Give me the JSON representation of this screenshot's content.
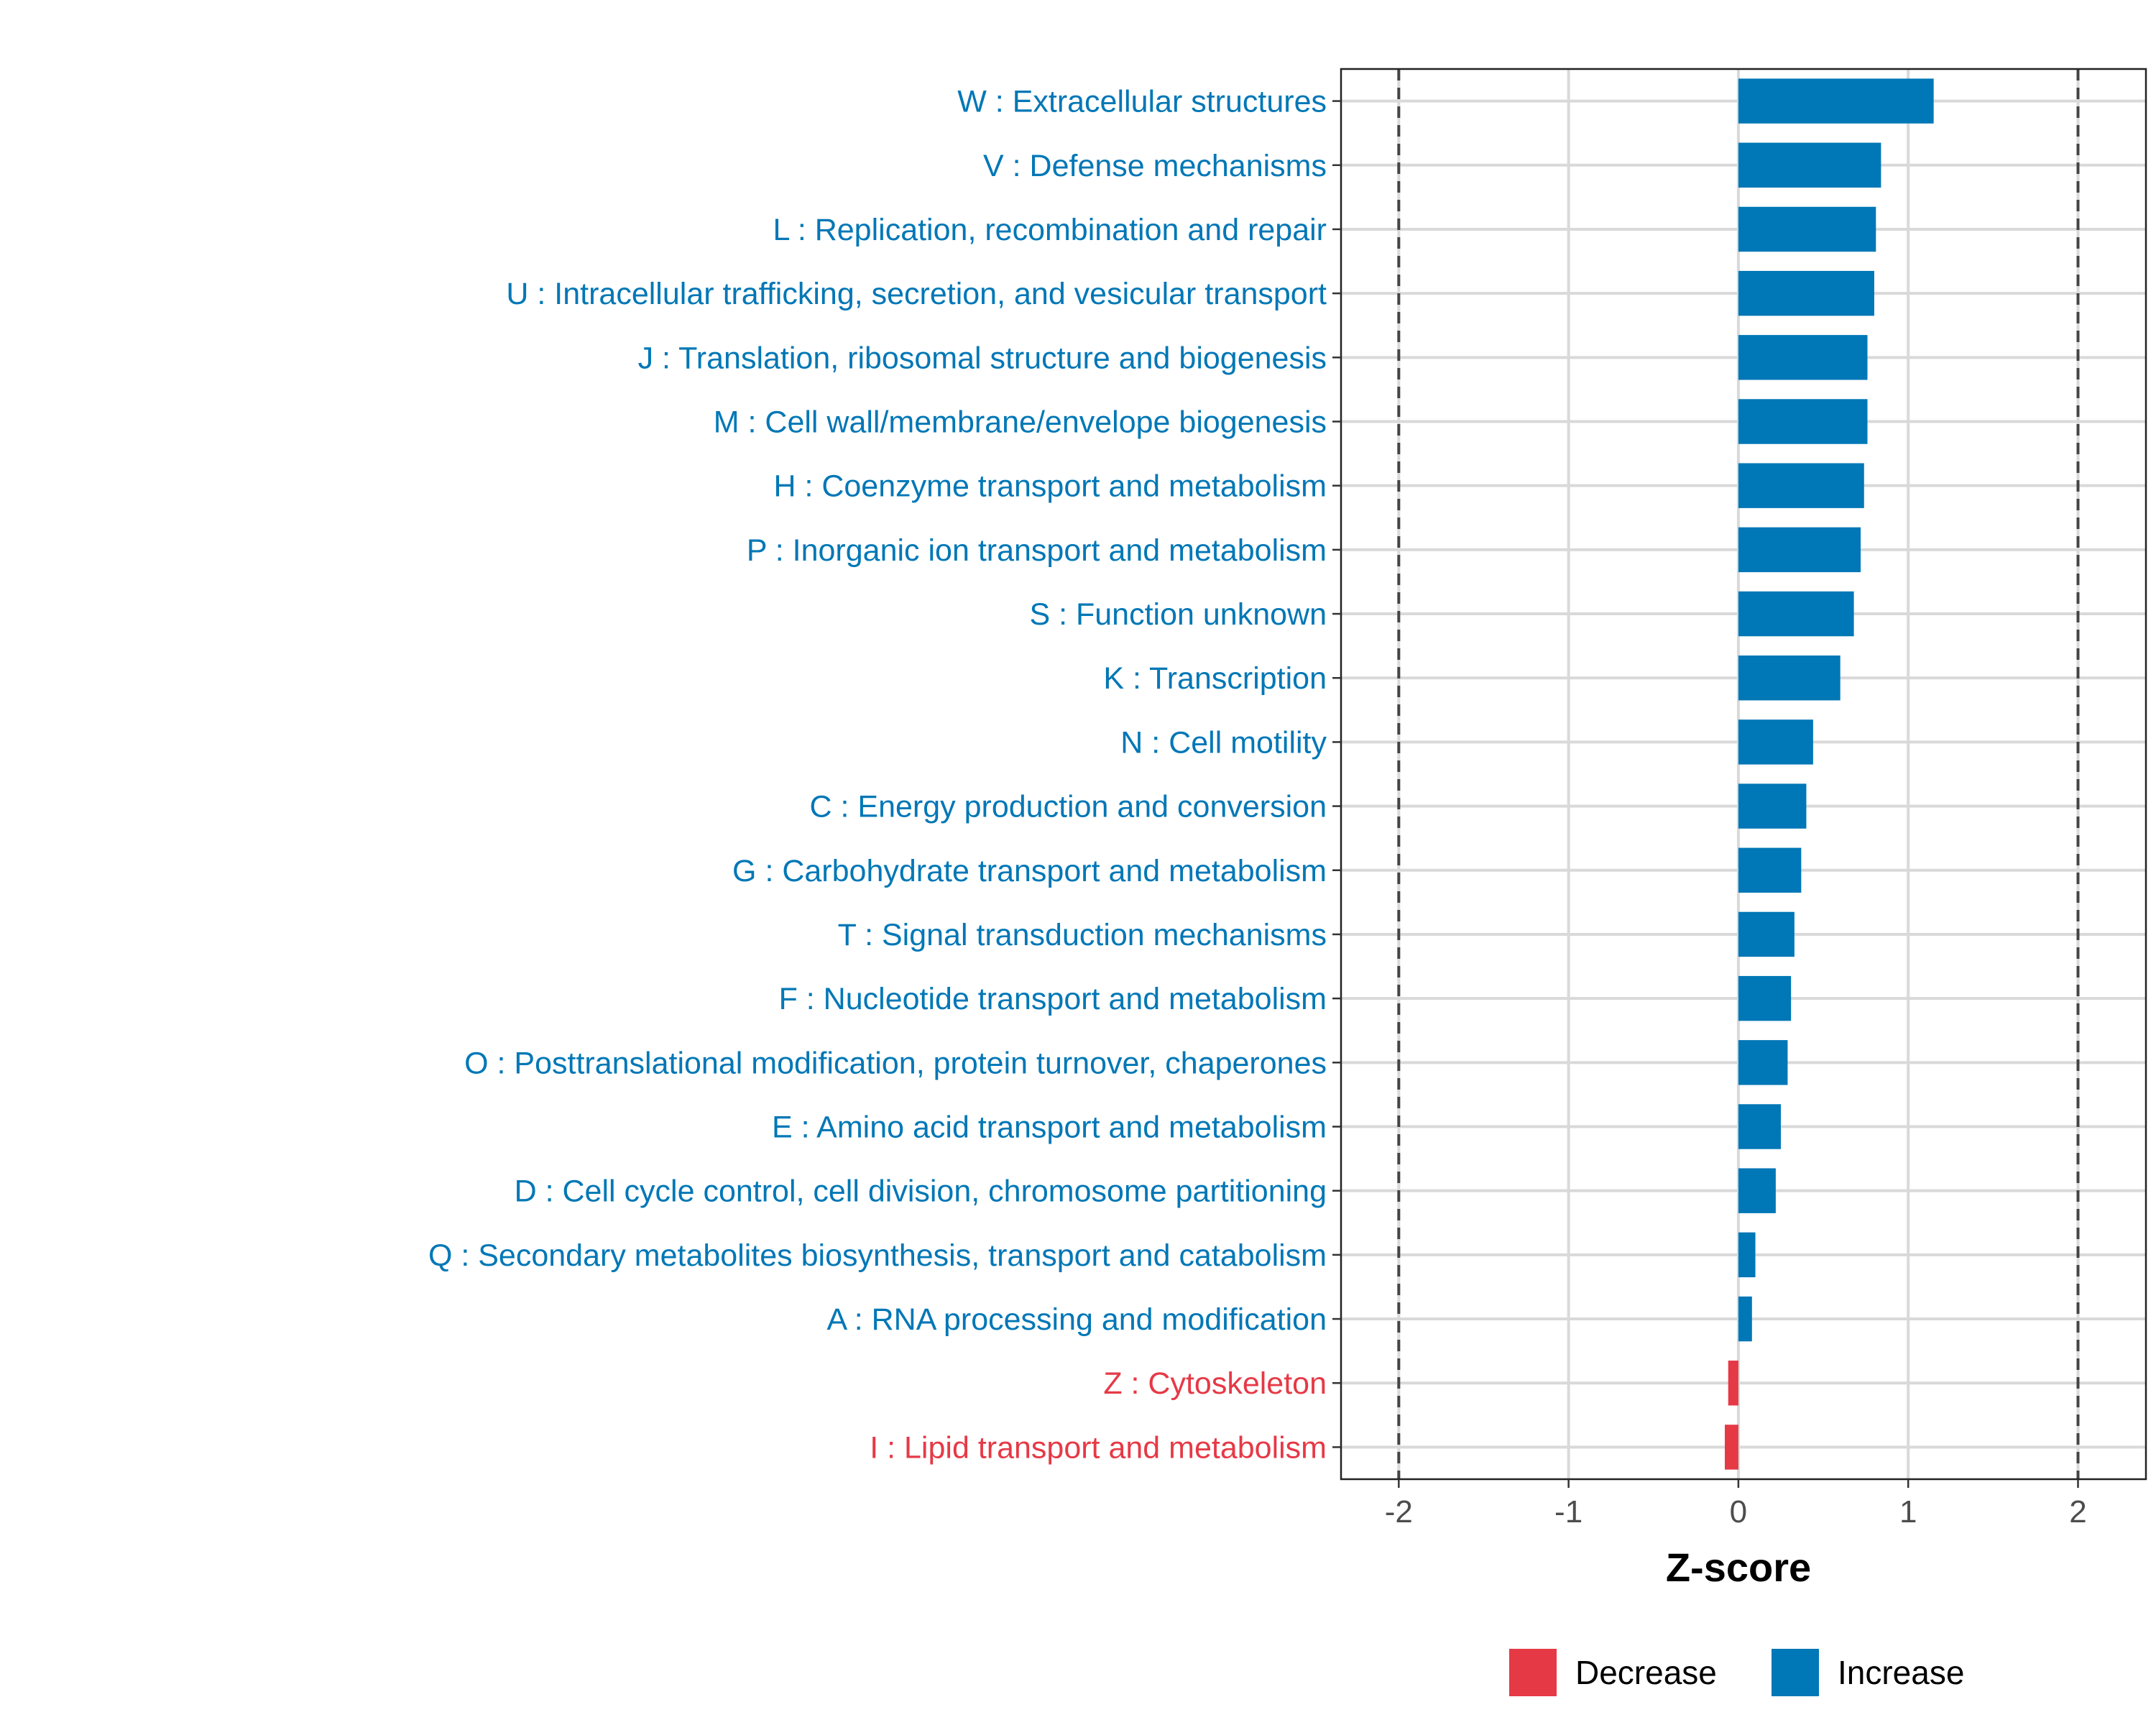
{
  "chart_data": {
    "type": "bar",
    "orientation": "horizontal",
    "title": "",
    "xlabel": "Z-score",
    "ylabel": "",
    "xlim": [
      -2.34,
      2.4
    ],
    "xticks": [
      -2,
      -1,
      0,
      1,
      2
    ],
    "xtick_labels": [
      "-2",
      "-1",
      "0",
      "1",
      "2"
    ],
    "reference_lines": [
      -2,
      2
    ],
    "grid": true,
    "legend": {
      "position": "bottom",
      "entries": [
        {
          "label": "Decrease",
          "color": "#E63946"
        },
        {
          "label": "Increase",
          "color": "#0077B6"
        }
      ]
    },
    "categories": [
      "W : Extracellular structures",
      "V : Defense mechanisms",
      "L : Replication, recombination and repair",
      "U : Intracellular trafficking, secretion, and vesicular transport",
      "J : Translation, ribosomal structure and biogenesis",
      "M : Cell wall/membrane/envelope biogenesis",
      "H : Coenzyme transport and metabolism",
      "P : Inorganic ion transport and metabolism",
      "S : Function unknown",
      "K : Transcription",
      "N : Cell motility",
      "C : Energy production and conversion",
      "G : Carbohydrate transport and metabolism",
      "T : Signal transduction mechanisms",
      "F : Nucleotide transport and metabolism",
      "O : Posttranslational modification, protein turnover, chaperones",
      "E : Amino acid transport and metabolism",
      "D : Cell cycle control, cell division, chromosome partitioning",
      "Q : Secondary metabolites biosynthesis, transport and catabolism",
      "A : RNA processing and modification",
      "Z : Cytoskeleton",
      "I : Lipid transport and metabolism"
    ],
    "values": [
      1.15,
      0.84,
      0.81,
      0.8,
      0.76,
      0.76,
      0.74,
      0.72,
      0.68,
      0.6,
      0.44,
      0.4,
      0.37,
      0.33,
      0.31,
      0.29,
      0.25,
      0.22,
      0.1,
      0.08,
      -0.06,
      -0.08
    ],
    "colors": {
      "increase": "#0077B6",
      "decrease": "#E63946"
    }
  }
}
